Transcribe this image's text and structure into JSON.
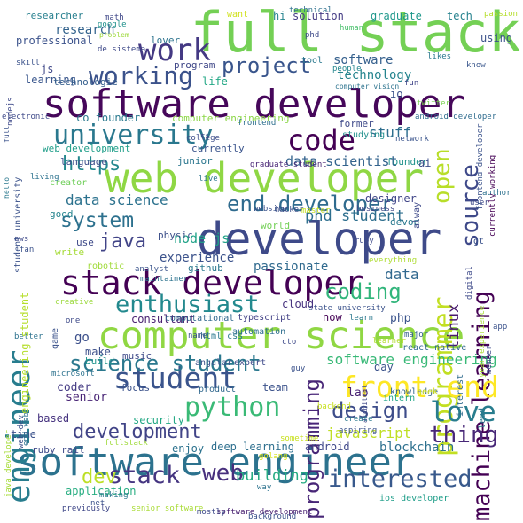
{
  "words": [
    {
      "text": "full stack",
      "color": "#74d055"
    },
    {
      "text": "software developer",
      "color": "#46075a"
    },
    {
      "text": "web developer",
      "color": "#8fd744"
    },
    {
      "text": "developer",
      "color": "#3e4a89"
    },
    {
      "text": "computer science",
      "color": "#90d743"
    },
    {
      "text": "software engineer",
      "color": "#2c728e"
    },
    {
      "text": "stack developer",
      "color": "#440154"
    },
    {
      "text": "engineer",
      "color": "#287d8e"
    },
    {
      "text": "work",
      "color": "#443983"
    },
    {
      "text": "working",
      "color": "#3b528b"
    },
    {
      "text": "project",
      "color": "#39558c"
    },
    {
      "text": "university",
      "color": "#2a788e"
    },
    {
      "text": "code",
      "color": "#440154"
    },
    {
      "text": "source",
      "color": "#3e4989"
    },
    {
      "text": "open",
      "color": "#b8de29"
    },
    {
      "text": "machine learning",
      "color": "#440154"
    },
    {
      "text": "programmer",
      "color": "#c2df23"
    },
    {
      "text": "https",
      "color": "#23888e"
    },
    {
      "text": "end developer",
      "color": "#2f6b8e"
    },
    {
      "text": "system",
      "color": "#2d718e"
    },
    {
      "text": "java",
      "color": "#414487"
    },
    {
      "text": "enthusiast",
      "color": "#23898e"
    },
    {
      "text": "programming",
      "color": "#482677"
    },
    {
      "text": "coding",
      "color": "#31b57b"
    },
    {
      "text": "student",
      "color": "#3a548c"
    },
    {
      "text": "front end",
      "color": "#fde725"
    },
    {
      "text": "love",
      "color": "#287d8e"
    },
    {
      "text": "science student",
      "color": "#2a788e"
    },
    {
      "text": "python",
      "color": "#3aba76"
    },
    {
      "text": "design",
      "color": "#3d4d8a"
    },
    {
      "text": "thing",
      "color": "#482878"
    },
    {
      "text": "development",
      "color": "#414487"
    },
    {
      "text": "stack",
      "color": "#453581"
    },
    {
      "text": "web",
      "color": "#472f7d"
    },
    {
      "text": "interested",
      "color": "#38598c"
    },
    {
      "text": "dev",
      "color": "#bddf26"
    },
    {
      "text": "building",
      "color": "#25ab82"
    },
    {
      "text": "javascript",
      "color": "#c0df25"
    },
    {
      "text": "blockchain",
      "color": "#2d708e"
    },
    {
      "text": "data scientist",
      "color": "#33638d"
    },
    {
      "text": "data science",
      "color": "#2c728e"
    },
    {
      "text": "node js",
      "color": "#1fa287"
    },
    {
      "text": "phd student",
      "color": "#2e6f8e"
    },
    {
      "text": "experience",
      "color": "#3b528b"
    },
    {
      "text": "passionate",
      "color": "#306a8e"
    },
    {
      "text": "data",
      "color": "#31688e"
    },
    {
      "text": "linux",
      "color": "#481a6c"
    },
    {
      "text": "software engineering",
      "color": "#39b977"
    },
    {
      "text": "research",
      "color": "#33638d"
    },
    {
      "text": "professional",
      "color": "#3b528b"
    },
    {
      "text": "learning",
      "color": "#39568c"
    },
    {
      "text": "technologie",
      "color": "#355f8d"
    },
    {
      "text": "life",
      "color": "#22a785"
    },
    {
      "text": "program",
      "color": "#3f4788"
    },
    {
      "text": "lover",
      "color": "#2c738e"
    },
    {
      "text": "software",
      "color": "#35608d"
    },
    {
      "text": "technology",
      "color": "#25848e"
    },
    {
      "text": "stuff",
      "color": "#2e6e8e"
    },
    {
      "text": "solution",
      "color": "#443b84"
    },
    {
      "text": "graduate",
      "color": "#1f988b"
    },
    {
      "text": "tech",
      "color": "#26828e"
    },
    {
      "text": "using",
      "color": "#3b518b"
    },
    {
      "text": "researcher",
      "color": "#277f8e"
    },
    {
      "text": "co founder",
      "color": "#29798e"
    },
    {
      "text": "computer engineering",
      "color": "#8bd646"
    },
    {
      "text": "web development",
      "color": "#1f9e89"
    },
    {
      "text": "language",
      "color": "#3d4e8a"
    },
    {
      "text": "junior",
      "color": "#2a768e"
    },
    {
      "text": "currently",
      "color": "#3a548c"
    },
    {
      "text": "former",
      "color": "#3e4989"
    },
    {
      "text": "founder",
      "color": "#20928c"
    },
    {
      "text": "creator",
      "color": "#6ece58"
    },
    {
      "text": "good",
      "color": "#25848e"
    },
    {
      "text": "use",
      "color": "#3e4a89"
    },
    {
      "text": "write",
      "color": "#a5db36"
    },
    {
      "text": "physic",
      "color": "#3c4f8a"
    },
    {
      "text": "designer",
      "color": "#404688"
    },
    {
      "text": "world",
      "color": "#73d056"
    },
    {
      "text": "devop",
      "color": "#29798e"
    },
    {
      "text": "robotic",
      "color": "#a0da39"
    },
    {
      "text": "github",
      "color": "#2a788e"
    },
    {
      "text": "consultant",
      "color": "#481f70"
    },
    {
      "text": "go",
      "color": "#3c508b"
    },
    {
      "text": "make",
      "color": "#3c4f8a"
    },
    {
      "text": "music",
      "color": "#3e4989"
    },
    {
      "text": "build",
      "color": "#1f948c"
    },
    {
      "text": "coder",
      "color": "#443a83"
    },
    {
      "text": "focus",
      "color": "#3b528b"
    },
    {
      "text": "senior",
      "color": "#482475"
    },
    {
      "text": "based",
      "color": "#46337f"
    },
    {
      "text": "time",
      "color": "#3b528b"
    },
    {
      "text": "security",
      "color": "#22a884"
    },
    {
      "text": "ruby rail",
      "color": "#3e4a89"
    },
    {
      "text": "enjoy",
      "color": "#2c728e"
    },
    {
      "text": "deep learning",
      "color": "#2e6f8e"
    },
    {
      "text": "android",
      "color": "#3f4889"
    },
    {
      "text": "team",
      "color": "#3b528b"
    },
    {
      "text": "lab",
      "color": "#482173"
    },
    {
      "text": "now",
      "color": "#440154"
    },
    {
      "text": "day",
      "color": "#3b528b"
    },
    {
      "text": "php",
      "color": "#3a538b"
    },
    {
      "text": "cloud",
      "color": "#46327e"
    },
    {
      "text": "application",
      "color": "#27ad81"
    },
    {
      "text": "senior software",
      "color": "#a8db34"
    },
    {
      "text": "ios developer",
      "color": "#1f9e89"
    },
    {
      "text": "software development",
      "color": "#482071"
    },
    {
      "text": "typescript",
      "color": "#424186"
    },
    {
      "text": "computational",
      "color": "#31688e"
    },
    {
      "text": "automation",
      "color": "#2e6e8e"
    },
    {
      "text": "angular",
      "color": "#3b528b"
    },
    {
      "text": "expert",
      "color": "#3e4a89"
    },
    {
      "text": "product",
      "color": "#31688e"
    },
    {
      "text": "html css",
      "color": "#2a788e"
    },
    {
      "text": "name",
      "color": "#3b528b"
    },
    {
      "text": "react native",
      "color": "#31688e"
    },
    {
      "text": "knowledge",
      "color": "#32648e"
    },
    {
      "text": "intern",
      "color": "#20a486"
    },
    {
      "text": "backend",
      "color": "#c8e020"
    },
    {
      "text": "geek",
      "color": "#d2e21b"
    },
    {
      "text": "golang",
      "color": "#d8e219"
    },
    {
      "text": "technical",
      "color": "#2d708e"
    },
    {
      "text": "math",
      "color": "#3f4788"
    },
    {
      "text": "google",
      "color": "#21918c"
    },
    {
      "text": "problem",
      "color": "#9dd93b"
    },
    {
      "text": "want",
      "color": "#d0e11c"
    },
    {
      "text": "hi",
      "color": "#25838e"
    },
    {
      "text": "phd",
      "color": "#3e4a89"
    },
    {
      "text": "human",
      "color": "#4ac16d"
    },
    {
      "text": "passion",
      "color": "#b5de2b"
    },
    {
      "text": "skill",
      "color": "#3b528b"
    },
    {
      "text": "de sistema",
      "color": "#3e4989"
    },
    {
      "text": "tool",
      "color": "#2a788e"
    },
    {
      "text": "people",
      "color": "#24878e"
    },
    {
      "text": "computer vision",
      "color": "#2c738e"
    },
    {
      "text": "fun",
      "color": "#404588"
    },
    {
      "text": "io",
      "color": "#3b528b"
    },
    {
      "text": "likes",
      "color": "#2a788e"
    },
    {
      "text": "know",
      "color": "#39568c"
    },
    {
      "text": "js",
      "color": "#3f4889"
    },
    {
      "text": "electronic",
      "color": "#3e4989"
    },
    {
      "text": "twitter",
      "color": "#7ad151"
    },
    {
      "text": "android developer",
      "color": "#2f6c8e"
    },
    {
      "text": "cs",
      "color": "#3b528b"
    },
    {
      "text": "college",
      "color": "#3d4d8a"
    },
    {
      "text": "frontend",
      "color": "#2e6f8e"
    },
    {
      "text": "studying",
      "color": "#21908d"
    },
    {
      "text": "network",
      "color": "#3a548c"
    },
    {
      "text": "ai",
      "color": "#3d4e8a"
    },
    {
      "text": "author",
      "color": "#2d718e"
    },
    {
      "text": "user",
      "color": "#3e4a89"
    },
    {
      "text": "gt",
      "color": "#3b528b"
    },
    {
      "text": "living",
      "color": "#2c728e"
    },
    {
      "text": "live",
      "color": "#2a768e"
    },
    {
      "text": "graduate student",
      "color": "#482475"
    },
    {
      "text": "business",
      "color": "#3f4788"
    },
    {
      "text": "website",
      "color": "#3b528b"
    },
    {
      "text": "hacker",
      "color": "#3c4f8a"
    },
    {
      "text": "master",
      "color": "#c5e021"
    },
    {
      "text": "fan",
      "color": "#3b528b"
    },
    {
      "text": "aws",
      "color": "#3e4989"
    },
    {
      "text": "maintainer",
      "color": "#2c738e"
    },
    {
      "text": "analyst",
      "color": "#3a548c"
    },
    {
      "text": "ruby",
      "color": "#3e4a89"
    },
    {
      "text": "everything",
      "color": "#addc30"
    },
    {
      "text": "state university",
      "color": "#3b528b"
    },
    {
      "text": "creative",
      "color": "#9bd93c"
    },
    {
      "text": "one",
      "color": "#3e4a89"
    },
    {
      "text": "learn",
      "color": "#2a788e"
    },
    {
      "text": "game",
      "color": "#3b528b"
    },
    {
      "text": "better",
      "color": "#2c728e"
    },
    {
      "text": "cto",
      "color": "#3e4989"
    },
    {
      "text": "guy",
      "color": "#3b528b"
    },
    {
      "text": "major",
      "color": "#35608d"
    },
    {
      "text": "learner",
      "color": "#b2dd2d"
    },
    {
      "text": "architect",
      "color": "#3f4889"
    },
    {
      "text": "create",
      "color": "#2a788e"
    },
    {
      "text": "aspiring",
      "color": "#3b528b"
    },
    {
      "text": "sometime",
      "color": "#c8e020"
    },
    {
      "text": "fullstack",
      "color": "#9fda3a"
    },
    {
      "text": "mostly",
      "color": "#3e4a89"
    },
    {
      "text": "way",
      "color": "#2c728e"
    },
    {
      "text": "net",
      "color": "#3b528b"
    },
    {
      "text": "making",
      "color": "#2a788e"
    },
    {
      "text": "previously",
      "color": "#3f4788"
    },
    {
      "text": "background",
      "color": "#3b528b"
    },
    {
      "text": "microsoft",
      "color": "#2c728e"
    },
    {
      "text": "member",
      "color": "#3e4989"
    },
    {
      "text": "app",
      "color": "#3b528b"
    },
    {
      "text": "interest",
      "color": "#2f6b8e"
    },
    {
      "text": "digital",
      "color": "#3e4a89"
    },
    {
      "text": "year experience",
      "color": "#a8db34"
    },
    {
      "text": "currently working",
      "color": "#440154"
    },
    {
      "text": "frontend developer",
      "color": "#3b528b"
    },
    {
      "text": "nodejs",
      "color": "#3e4989"
    },
    {
      "text": "student university",
      "color": "#3b528b"
    },
    {
      "text": "engineering student",
      "color": "#b5de2b"
    },
    {
      "text": "hello",
      "color": "#2a788e"
    },
    {
      "text": "full",
      "color": "#3b528b"
    },
    {
      "text": "java developer",
      "color": "#a5db36"
    },
    {
      "text": "web dev",
      "color": "#3b528b"
    },
    {
      "text": "end web",
      "color": "#2c728e"
    },
    {
      "text": "alway",
      "color": "#3e4989"
    },
    {
      "text": "lead",
      "color": "#2a788e"
    }
  ]
}
